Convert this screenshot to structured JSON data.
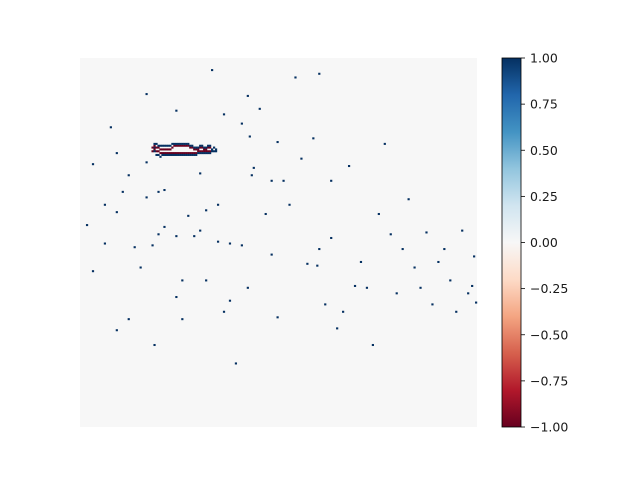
{
  "chart_data": {
    "type": "heatmap",
    "title": "",
    "xlabel": "",
    "ylabel": "",
    "axes_visible": false,
    "grid": false,
    "background_value": 0.0,
    "colormap": "RdBu",
    "colormap_stops": [
      "#67001f",
      "#b2182b",
      "#d6604d",
      "#f4a582",
      "#fddbc7",
      "#f7f7f7",
      "#d1e5f0",
      "#92c5de",
      "#4393c3",
      "#2166ac",
      "#053061"
    ],
    "colorbar": {
      "vmin": -1.0,
      "vmax": 1.0,
      "ticks": [
        1.0,
        0.75,
        0.5,
        0.25,
        0.0,
        -0.25,
        -0.5,
        -0.75,
        -1.0
      ],
      "tick_labels": [
        "1.00",
        "0.75",
        "0.50",
        "0.25",
        "0.00",
        "−0.25",
        "−0.50",
        "−0.75",
        "−1.00"
      ]
    },
    "grid_size": [
      200,
      200
    ],
    "sparse_cells_note_excluded": true,
    "cells": [
      [
        3,
        90,
        1
      ],
      [
        6,
        57,
        1
      ],
      [
        6,
        115,
        1
      ],
      [
        12,
        79,
        1
      ],
      [
        12,
        100,
        1
      ],
      [
        15,
        37,
        1
      ],
      [
        18,
        51,
        1
      ],
      [
        18,
        83,
        1
      ],
      [
        18,
        147,
        1
      ],
      [
        21,
        72,
        1
      ],
      [
        24,
        63,
        1
      ],
      [
        24,
        141,
        1
      ],
      [
        27,
        102,
        1
      ],
      [
        30,
        113,
        1
      ],
      [
        33,
        19,
        1
      ],
      [
        33,
        56,
        1
      ],
      [
        33,
        75,
        1
      ],
      [
        36,
        101,
        1
      ],
      [
        37,
        48,
        1
      ],
      [
        37,
        155,
        1
      ],
      [
        39,
        72,
        1
      ],
      [
        39,
        95,
        1
      ],
      [
        42,
        71,
        1
      ],
      [
        42,
        91,
        1
      ],
      [
        48,
        28,
        1
      ],
      [
        48,
        96,
        1
      ],
      [
        48,
        129,
        1
      ],
      [
        51,
        120,
        1
      ],
      [
        51,
        141,
        1
      ],
      [
        54,
        85,
        1
      ],
      [
        57,
        96,
        1
      ],
      [
        60,
        62,
        1
      ],
      [
        60,
        93,
        1
      ],
      [
        63,
        82,
        1
      ],
      [
        63,
        120,
        1
      ],
      [
        66,
        6,
        1
      ],
      [
        69,
        79,
        1
      ],
      [
        69,
        99,
        1
      ],
      [
        72,
        30,
        1
      ],
      [
        72,
        137,
        1
      ],
      [
        75,
        100,
        1
      ],
      [
        75,
        131,
        1
      ],
      [
        78,
        165,
        1
      ],
      [
        81,
        35,
        1
      ],
      [
        81,
        101,
        1
      ],
      [
        84,
        20,
        1
      ],
      [
        84,
        124,
        1
      ],
      [
        85,
        42,
        1
      ],
      [
        86,
        63,
        1
      ],
      [
        87,
        59,
        1
      ],
      [
        90,
        27,
        1
      ],
      [
        93,
        84,
        1
      ],
      [
        96,
        66,
        1
      ],
      [
        96,
        106,
        1
      ],
      [
        99,
        45,
        1
      ],
      [
        99,
        140,
        1
      ],
      [
        102,
        66,
        1
      ],
      [
        105,
        79,
        1
      ],
      [
        108,
        10,
        1
      ],
      [
        111,
        54,
        1
      ],
      [
        114,
        111,
        1
      ],
      [
        117,
        43,
        1
      ],
      [
        119,
        112,
        1
      ],
      [
        120,
        8,
        1
      ],
      [
        120,
        103,
        1
      ],
      [
        123,
        133,
        1
      ],
      [
        126,
        66,
        1
      ],
      [
        126,
        97,
        1
      ],
      [
        129,
        146,
        1
      ],
      [
        132,
        137,
        1
      ],
      [
        135,
        58,
        1
      ],
      [
        138,
        123,
        1
      ],
      [
        141,
        110,
        1
      ],
      [
        144,
        124,
        1
      ],
      [
        147,
        155,
        1
      ],
      [
        150,
        84,
        1
      ],
      [
        153,
        46,
        1
      ],
      [
        156,
        95,
        1
      ],
      [
        159,
        127,
        1
      ],
      [
        162,
        103,
        1
      ],
      [
        165,
        76,
        1
      ],
      [
        168,
        113,
        1
      ],
      [
        171,
        124,
        1
      ],
      [
        174,
        94,
        1
      ],
      [
        177,
        133,
        1
      ],
      [
        180,
        110,
        1
      ],
      [
        183,
        103,
        1
      ],
      [
        186,
        120,
        1
      ],
      [
        189,
        137,
        1
      ],
      [
        192,
        93,
        1
      ],
      [
        195,
        127,
        1
      ],
      [
        197,
        123,
        1
      ],
      [
        198,
        107,
        1
      ],
      [
        199,
        132,
        1
      ]
    ],
    "outline_cells": [
      [
        40,
        47,
        -1
      ],
      [
        41,
        48,
        -1
      ],
      [
        42,
        48,
        -1
      ],
      [
        43,
        49,
        -1
      ],
      [
        44,
        49,
        -1
      ],
      [
        45,
        49,
        -1
      ],
      [
        46,
        49,
        -1
      ],
      [
        47,
        49,
        -1
      ],
      [
        48,
        49,
        -1
      ],
      [
        49,
        48,
        -1
      ],
      [
        50,
        47,
        -1
      ],
      [
        51,
        47,
        -1
      ],
      [
        52,
        47,
        -1
      ],
      [
        53,
        47,
        -1
      ],
      [
        54,
        47,
        -1
      ],
      [
        55,
        47,
        -1
      ],
      [
        56,
        47,
        -1
      ],
      [
        57,
        47,
        -1
      ],
      [
        58,
        48,
        -1
      ],
      [
        59,
        48,
        -1
      ],
      [
        60,
        49,
        -1
      ],
      [
        61,
        49,
        -1
      ],
      [
        62,
        49,
        -1
      ],
      [
        63,
        48,
        -1
      ],
      [
        64,
        48,
        -1
      ],
      [
        65,
        49,
        -1
      ],
      [
        66,
        49,
        -1
      ],
      [
        67,
        48,
        -1
      ],
      [
        68,
        48,
        -1
      ],
      [
        40,
        49,
        -1
      ],
      [
        41,
        50,
        -1
      ],
      [
        42,
        50,
        -1
      ],
      [
        43,
        51,
        -1
      ],
      [
        44,
        51,
        -1
      ],
      [
        45,
        51,
        -1
      ],
      [
        46,
        51,
        -1
      ],
      [
        47,
        51,
        -1
      ],
      [
        48,
        51,
        -1
      ],
      [
        49,
        51,
        -1
      ],
      [
        50,
        51,
        -1
      ],
      [
        51,
        51,
        -1
      ],
      [
        52,
        51,
        -1
      ],
      [
        53,
        51,
        -1
      ],
      [
        54,
        51,
        -1
      ],
      [
        55,
        51,
        -1
      ],
      [
        56,
        51,
        -1
      ],
      [
        57,
        51,
        -1
      ],
      [
        58,
        51,
        -1
      ],
      [
        59,
        51,
        -1
      ],
      [
        60,
        51,
        -1
      ],
      [
        61,
        51,
        -1
      ],
      [
        62,
        50,
        -1
      ],
      [
        63,
        50,
        -1
      ],
      [
        64,
        50,
        -1
      ],
      [
        65,
        50,
        -1
      ],
      [
        66,
        50,
        -1
      ],
      [
        67,
        50,
        -1
      ],
      [
        68,
        50,
        -1
      ],
      [
        40,
        46,
        1
      ],
      [
        41,
        46,
        1
      ],
      [
        42,
        47,
        1
      ],
      [
        43,
        47,
        1
      ],
      [
        44,
        47,
        1
      ],
      [
        45,
        47,
        1
      ],
      [
        46,
        47,
        1
      ],
      [
        47,
        47,
        1
      ],
      [
        48,
        47,
        1
      ],
      [
        49,
        46,
        1
      ],
      [
        50,
        46,
        1
      ],
      [
        51,
        46,
        1
      ],
      [
        52,
        46,
        1
      ],
      [
        53,
        46,
        1
      ],
      [
        54,
        46,
        1
      ],
      [
        55,
        46,
        1
      ],
      [
        56,
        46,
        1
      ],
      [
        57,
        46,
        1
      ],
      [
        58,
        47,
        1
      ],
      [
        59,
        47,
        1
      ],
      [
        60,
        48,
        1
      ],
      [
        61,
        48,
        1
      ],
      [
        62,
        48,
        1
      ],
      [
        63,
        47,
        1
      ],
      [
        64,
        47,
        1
      ],
      [
        65,
        48,
        1
      ],
      [
        66,
        48,
        1
      ],
      [
        67,
        47,
        1
      ],
      [
        68,
        47,
        1
      ],
      [
        69,
        49,
        1
      ],
      [
        70,
        48,
        1
      ],
      [
        71,
        49,
        1
      ],
      [
        39,
        48,
        -1
      ],
      [
        39,
        50,
        -1
      ],
      [
        40,
        50,
        1
      ],
      [
        41,
        52,
        1
      ],
      [
        42,
        52,
        1
      ],
      [
        43,
        53,
        1
      ],
      [
        44,
        52,
        1
      ],
      [
        45,
        52,
        1
      ],
      [
        46,
        52,
        1
      ],
      [
        47,
        52,
        1
      ],
      [
        48,
        52,
        1
      ],
      [
        49,
        52,
        1
      ],
      [
        50,
        52,
        1
      ],
      [
        51,
        52,
        1
      ],
      [
        52,
        52,
        1
      ],
      [
        53,
        52,
        1
      ],
      [
        54,
        52,
        1
      ],
      [
        55,
        52,
        1
      ],
      [
        56,
        52,
        1
      ],
      [
        57,
        52,
        1
      ],
      [
        58,
        52,
        1
      ],
      [
        59,
        52,
        1
      ],
      [
        60,
        52,
        1
      ],
      [
        61,
        52,
        1
      ],
      [
        62,
        51,
        1
      ],
      [
        63,
        51,
        1
      ],
      [
        64,
        51,
        1
      ],
      [
        65,
        51,
        1
      ],
      [
        66,
        51,
        1
      ],
      [
        67,
        51,
        1
      ],
      [
        68,
        51,
        1
      ],
      [
        69,
        50,
        1
      ],
      [
        70,
        50,
        1
      ],
      [
        71,
        50,
        1
      ]
    ]
  }
}
